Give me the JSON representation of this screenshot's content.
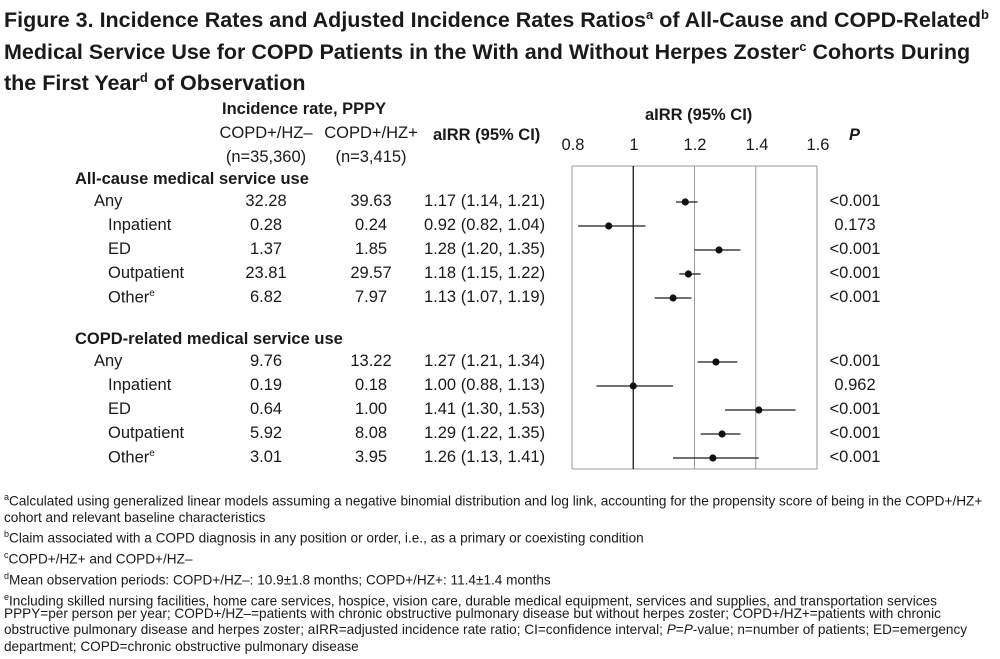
{
  "title": {
    "part1": "Figure 3. Incidence Rates and Adjusted Incidence Rates Ratios",
    "sup_a": "a",
    "part2": " of All-Cause and COPD-Related",
    "sup_b": "b",
    "part3": " Medical Service Use for COPD Patients in the With and Without Herpes Zoster",
    "sup_c": "c",
    "part4": " Cohorts During the First Year",
    "sup_d": "d",
    "part5": " of Observation"
  },
  "table": {
    "incidence_header": "Incidence rate, PPPY",
    "col1_name": "COPD+/HZ–",
    "col1_n": "(n=35,360)",
    "col2_name": "COPD+/HZ+",
    "col2_n": "(n=3,415)",
    "airr_header": "aIRR (95% CI)",
    "plot_header": "aIRR (95% CI)",
    "p_header": "P",
    "sections": [
      {
        "label": "All-cause medical service use",
        "rows": [
          {
            "label": "Any",
            "sup": "",
            "indent": 0,
            "rate_neg": "32.28",
            "rate_pos": "39.63",
            "airr": "1.17 (1.14, 1.21)",
            "p": "<0.001"
          },
          {
            "label": "Inpatient",
            "sup": "",
            "indent": 1,
            "rate_neg": "0.28",
            "rate_pos": "0.24",
            "airr": "0.92 (0.82, 1.04)",
            "p": "0.173"
          },
          {
            "label": "ED",
            "sup": "",
            "indent": 1,
            "rate_neg": "1.37",
            "rate_pos": "1.85",
            "airr": "1.28 (1.20, 1.35)",
            "p": "<0.001"
          },
          {
            "label": "Outpatient",
            "sup": "",
            "indent": 1,
            "rate_neg": "23.81",
            "rate_pos": "29.57",
            "airr": "1.18 (1.15, 1.22)",
            "p": "<0.001"
          },
          {
            "label": "Other",
            "sup": "e",
            "indent": 1,
            "rate_neg": "6.82",
            "rate_pos": "7.97",
            "airr": "1.13 (1.07, 1.19)",
            "p": "<0.001"
          }
        ]
      },
      {
        "label": "COPD-related medical service use",
        "rows": [
          {
            "label": "Any",
            "sup": "",
            "indent": 0,
            "rate_neg": "9.76",
            "rate_pos": "13.22",
            "airr": "1.27 (1.21, 1.34)",
            "p": "<0.001"
          },
          {
            "label": "Inpatient",
            "sup": "",
            "indent": 1,
            "rate_neg": "0.19",
            "rate_pos": "0.18",
            "airr": "1.00 (0.88, 1.13)",
            "p": "0.962"
          },
          {
            "label": "ED",
            "sup": "",
            "indent": 1,
            "rate_neg": "0.64",
            "rate_pos": "1.00",
            "airr": "1.41 (1.30, 1.53)",
            "p": "<0.001"
          },
          {
            "label": "Outpatient",
            "sup": "",
            "indent": 1,
            "rate_neg": "5.92",
            "rate_pos": "8.08",
            "airr": "1.29 (1.22, 1.35)",
            "p": "<0.001"
          },
          {
            "label": "Other",
            "sup": "e",
            "indent": 1,
            "rate_neg": "3.01",
            "rate_pos": "3.95",
            "airr": "1.26 (1.13, 1.41)",
            "p": "<0.001"
          }
        ]
      }
    ]
  },
  "chart_data": {
    "type": "scatter",
    "subtype": "forest-plot",
    "title": "aIRR (95% CI)",
    "xlim": [
      0.8,
      1.6
    ],
    "x_ticks": [
      "0.8",
      "1",
      "1.2",
      "1.4",
      "1.6"
    ],
    "x_tick_values": [
      0.8,
      1.0,
      1.2,
      1.4,
      1.6
    ],
    "reference_line": 1.0,
    "gridlines": [
      1.2,
      1.4
    ],
    "series": [
      {
        "name": "All-cause medical service use",
        "points": [
          {
            "category": "Any",
            "estimate": 1.17,
            "lower": 1.14,
            "upper": 1.21
          },
          {
            "category": "Inpatient",
            "estimate": 0.92,
            "lower": 0.82,
            "upper": 1.04
          },
          {
            "category": "ED",
            "estimate": 1.28,
            "lower": 1.2,
            "upper": 1.35
          },
          {
            "category": "Outpatient",
            "estimate": 1.18,
            "lower": 1.15,
            "upper": 1.22
          },
          {
            "category": "Other",
            "estimate": 1.13,
            "lower": 1.07,
            "upper": 1.19
          }
        ]
      },
      {
        "name": "COPD-related medical service use",
        "points": [
          {
            "category": "Any",
            "estimate": 1.27,
            "lower": 1.21,
            "upper": 1.34
          },
          {
            "category": "Inpatient",
            "estimate": 1.0,
            "lower": 0.88,
            "upper": 1.13
          },
          {
            "category": "ED",
            "estimate": 1.41,
            "lower": 1.3,
            "upper": 1.53
          },
          {
            "category": "Outpatient",
            "estimate": 1.29,
            "lower": 1.22,
            "upper": 1.35
          },
          {
            "category": "Other",
            "estimate": 1.26,
            "lower": 1.13,
            "upper": 1.41
          }
        ]
      }
    ]
  },
  "footnotes": [
    {
      "sup": "a",
      "text": "Calculated using generalized linear models assuming a negative binomial distribution and log link, accounting for the propensity score of being in the COPD+/HZ+ cohort and relevant baseline characteristics"
    },
    {
      "sup": "b",
      "text": "Claim associated with a COPD diagnosis in any position or order, i.e., as a primary or coexisting condition"
    },
    {
      "sup": "c",
      "text": "COPD+/HZ+ and COPD+/HZ–"
    },
    {
      "sup": "d",
      "text": "Mean observation periods: COPD+/HZ–: 10.9±1.8 months; COPD+/HZ+: 11.4±1.4 months"
    },
    {
      "sup": "e",
      "text": "Including skilled nursing facilities, home care services, hospice, vision care, durable medical equipment, services and supplies, and transportation services"
    }
  ],
  "abbreviations": {
    "part1": "PPPY=per person per year; COPD+/HZ–=patients with chronic obstructive pulmonary disease but without herpes zoster; COPD+/HZ+=patients with chronic obstructive pulmonary disease and herpes zoster; aIRR=adjusted incidence rate ratio; CI=confidence interval; ",
    "p_italic": "P",
    "eq": "=",
    "p_italic2": "P",
    "part2": "-value; n=number of patients; ED=emergency department; COPD=chronic obstructive pulmonary disease"
  }
}
